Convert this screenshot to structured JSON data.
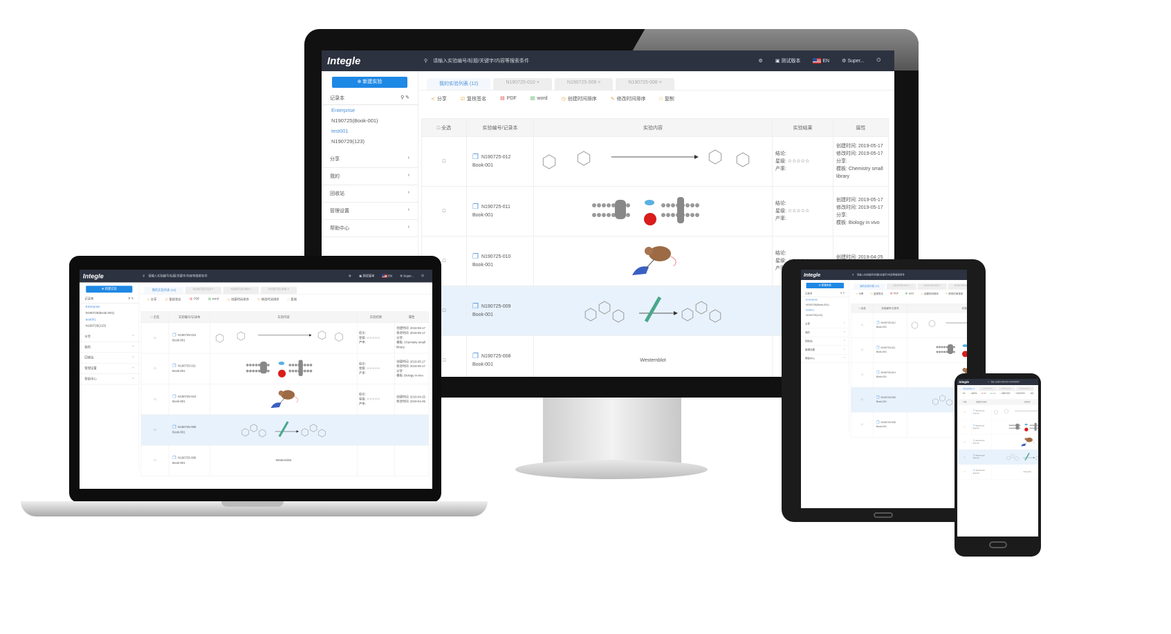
{
  "header": {
    "logo": "Integle",
    "search_placeholder": "请输入实验编号/标题/关键字/内容等搜索条件",
    "version": "测试版本",
    "lang": "EN",
    "user": "Super..."
  },
  "sidebar": {
    "new_button": "新建实验",
    "notebook_label": "记录本",
    "tree": [
      {
        "label": "Enterprise",
        "type": "group"
      },
      {
        "label": "N190725(Book-001)",
        "type": "item"
      },
      {
        "label": "test001",
        "type": "group"
      },
      {
        "label": "N190729(123)",
        "type": "item"
      }
    ],
    "menu": [
      "分享",
      "我的",
      "回收站",
      "管理设置",
      "帮助中心"
    ]
  },
  "tabs": [
    {
      "label": "我的实验列表 (12)",
      "active": true
    },
    {
      "label": "N190725-010"
    },
    {
      "label": "N190725-009"
    },
    {
      "label": "N190725-008"
    }
  ],
  "toolbar": [
    "分享",
    "复核签名",
    "PDF",
    "word",
    "创建时间排序",
    "修改时间排序",
    "复制"
  ],
  "table": {
    "headers": [
      "全选",
      "实验编号/记录本",
      "实验内容",
      "实验结果",
      "属性"
    ],
    "rows": [
      {
        "id": "N190725-012",
        "book": "Book-001",
        "content": "chemistry-reaction",
        "result": [
          "结论:",
          "星级: ☆☆☆☆☆",
          "产率:"
        ],
        "props": [
          "创建时间: 2019-05-17",
          "修改时间: 2019-05-17",
          "分享:",
          "模板: Chemistry small library"
        ]
      },
      {
        "id": "N190725-011",
        "book": "Book-001",
        "content": "cell-membrane",
        "result": [
          "结论:",
          "星级: ☆☆☆☆☆",
          "产率:"
        ],
        "props": [
          "创建时间: 2019-05-17",
          "修改时间: 2019-05-17",
          "分享:",
          "模板: Biology in vivo"
        ]
      },
      {
        "id": "N190725-010",
        "book": "Book-001",
        "content": "mouse-injection",
        "result": [
          "结论:",
          "星级: ☆☆☆☆☆",
          "产率:"
        ],
        "props": [
          "创建时间: 2019-04-25",
          "修改时间: 2019-04-25",
          "",
          ""
        ]
      },
      {
        "id": "N190725-009",
        "book": "Book-001",
        "content": "drug-synthesis",
        "highlighted": true,
        "result": [
          "",
          "",
          ""
        ],
        "props": [
          "",
          "",
          "",
          ""
        ]
      },
      {
        "id": "N190725-008",
        "book": "Book-001",
        "content": "Westernblot",
        "text": "Westernblot",
        "result": [
          "",
          "",
          ""
        ],
        "props": [
          "",
          "",
          "",
          ""
        ]
      }
    ]
  },
  "colors": {
    "header_bg": "#2d3240",
    "accent": "#1e88e5",
    "highlight_row": "#e8f2fc"
  }
}
